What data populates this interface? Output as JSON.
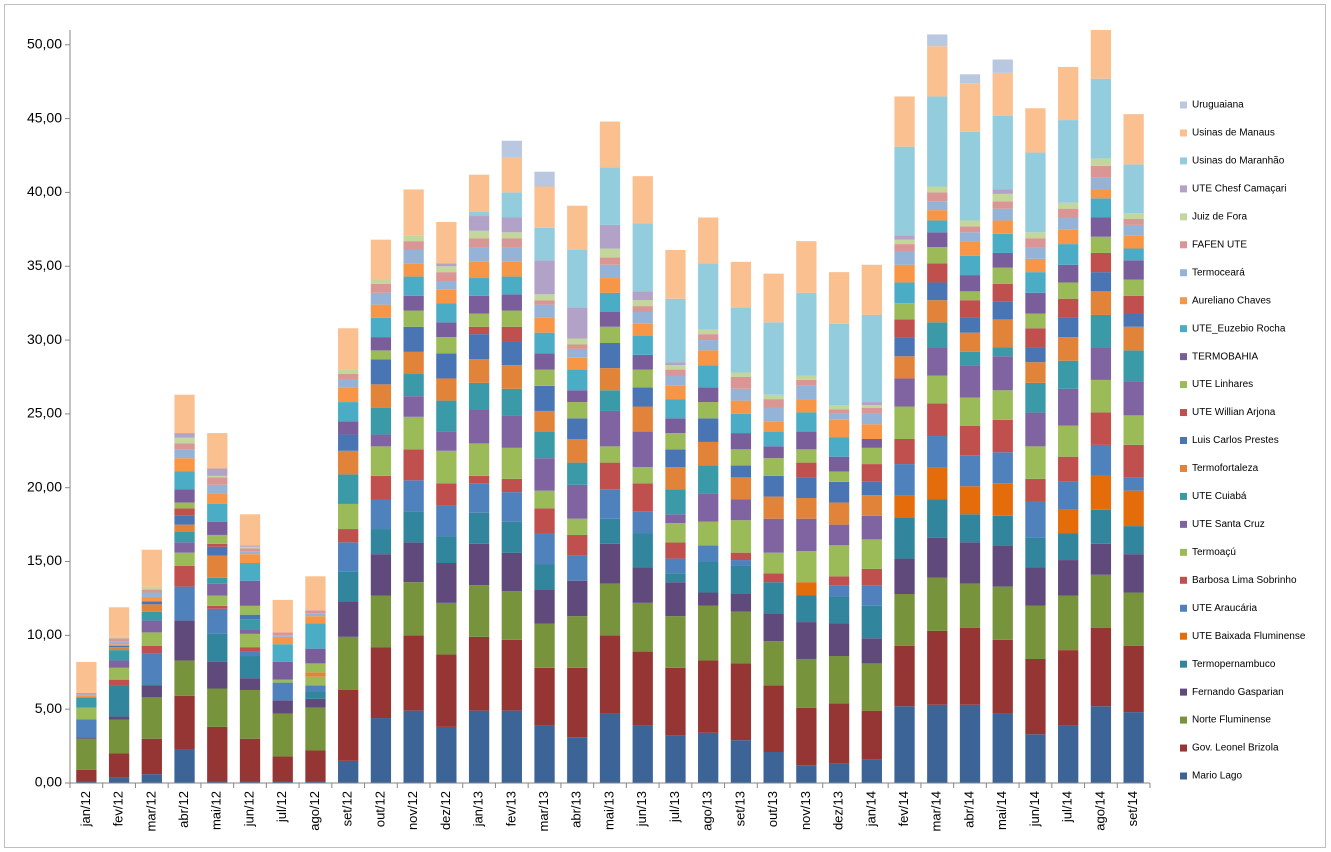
{
  "chart_data": {
    "type": "stacked_bar",
    "categories": [
      "jan/12",
      "fev/12",
      "mar/12",
      "abr/12",
      "mai/12",
      "jun/12",
      "jul/12",
      "ago/12",
      "set/12",
      "out/12",
      "nov/12",
      "dez/12",
      "jan/13",
      "fev/13",
      "mar/13",
      "abr/13",
      "mai/13",
      "jun/13",
      "jul/13",
      "ago/13",
      "set/13",
      "out/13",
      "nov/13",
      "dez/13",
      "jan/14",
      "fev/14",
      "mar/14",
      "abr/14",
      "mai/14",
      "jun/14",
      "jul/14",
      "ago/14",
      "set/14"
    ],
    "ylim": [
      0,
      51
    ],
    "yticks": [
      {
        "value": 0,
        "label": "0,00"
      },
      {
        "value": 5,
        "label": "5,00"
      },
      {
        "value": 10,
        "label": "10,00"
      },
      {
        "value": 15,
        "label": "15,00"
      },
      {
        "value": 20,
        "label": "20,00"
      },
      {
        "value": 25,
        "label": "25,00"
      },
      {
        "value": 30,
        "label": "30,00"
      },
      {
        "value": 35,
        "label": "35,00"
      },
      {
        "value": 40,
        "label": "40,00"
      },
      {
        "value": 45,
        "label": "45,00"
      },
      {
        "value": 50,
        "label": "50,00"
      }
    ],
    "grid": false,
    "legend": "right",
    "series": [
      {
        "name": "Mario Lago",
        "color": "#3c6497",
        "values": [
          0.1,
          0.4,
          0.6,
          2.3,
          0.1,
          0.1,
          0.1,
          0.1,
          1.5,
          4.4,
          4.9,
          3.8,
          4.9,
          4.9,
          3.9,
          3.1,
          4.7,
          3.9,
          3.2,
          3.4,
          2.9,
          2.1,
          1.2,
          1.3,
          1.6,
          5.2,
          5.3,
          5.3,
          4.7,
          3.3,
          3.9,
          5.2,
          4.8
        ]
      },
      {
        "name": "Gov. Leonel Brizola",
        "color": "#963634",
        "values": [
          0.8,
          1.6,
          2.4,
          3.6,
          3.7,
          2.9,
          1.7,
          2.1,
          4.8,
          4.8,
          5.1,
          4.9,
          5.0,
          4.8,
          3.9,
          4.7,
          5.3,
          5.0,
          4.6,
          4.9,
          5.2,
          4.5,
          3.9,
          4.1,
          3.3,
          4.1,
          5.0,
          5.2,
          5.0,
          5.1,
          5.1,
          5.3,
          4.5
        ]
      },
      {
        "name": "Norte Fluminense",
        "color": "#77933c",
        "values": [
          2.1,
          2.3,
          2.8,
          2.4,
          2.6,
          3.3,
          2.9,
          2.9,
          3.6,
          3.5,
          3.6,
          3.5,
          3.5,
          3.3,
          3.0,
          3.5,
          3.5,
          3.3,
          3.5,
          3.7,
          3.5,
          3.0,
          3.3,
          3.2,
          3.2,
          3.5,
          3.6,
          3.0,
          3.6,
          3.6,
          3.7,
          3.6,
          3.6
        ]
      },
      {
        "name": "Fernando Gasparian",
        "color": "#604a7b",
        "values": [
          0.1,
          0.2,
          0.8,
          2.7,
          1.8,
          0.8,
          0.9,
          0.6,
          2.4,
          2.8,
          2.7,
          2.7,
          2.8,
          2.6,
          2.3,
          2.4,
          2.7,
          2.4,
          2.3,
          0.9,
          1.2,
          1.9,
          2.5,
          2.2,
          1.7,
          2.4,
          2.7,
          2.8,
          2.8,
          2.6,
          2.4,
          2.1,
          2.6
        ]
      },
      {
        "name": "Termopernambuco",
        "color": "#31859c",
        "values": [
          0,
          2.1,
          0.1,
          0,
          1.9,
          1.5,
          0,
          0.5,
          2.0,
          1.7,
          2.1,
          1.8,
          2.1,
          2.1,
          1.7,
          0,
          1.7,
          2.3,
          0.6,
          2.1,
          1.9,
          2.1,
          1.8,
          1.8,
          2.2,
          2.8,
          2.6,
          1.9,
          2.0,
          2.0,
          1.8,
          2.3,
          1.9
        ]
      },
      {
        "name": "UTE Baixada Fluminense",
        "color": "#e46c0a",
        "values": [
          0,
          0,
          0,
          0,
          0,
          0,
          0,
          0,
          0,
          0,
          0,
          0,
          0,
          0,
          0,
          0,
          0,
          0,
          0,
          0,
          0,
          0,
          0.9,
          0,
          0,
          1.5,
          2.2,
          1.9,
          2.2,
          0,
          1.6,
          2.3,
          2.4
        ]
      },
      {
        "name": "UTE Araucária",
        "color": "#4f81bd",
        "values": [
          1.2,
          0,
          2.1,
          2.3,
          1.7,
          0.3,
          1.2,
          0.4,
          2.0,
          2.0,
          2.1,
          2.1,
          2.0,
          2.0,
          2.1,
          1.7,
          2.0,
          1.5,
          1.0,
          1.1,
          0.4,
          0,
          0,
          0.8,
          1.4,
          2.1,
          2.1,
          2.1,
          2.1,
          2.5,
          1.9,
          2.1,
          0.9
        ]
      },
      {
        "name": "Barbosa Lima Sobrinho",
        "color": "#c0504d",
        "values": [
          0,
          0.4,
          0.5,
          1.4,
          0.2,
          0.3,
          0,
          0,
          0.9,
          1.6,
          2.1,
          1.5,
          0.5,
          0.9,
          1.7,
          1.4,
          1.8,
          1.9,
          1.1,
          0,
          0.5,
          0.6,
          0,
          0.6,
          1.1,
          1.7,
          2.2,
          2.0,
          2.2,
          1.5,
          1.7,
          2.2,
          2.2
        ]
      },
      {
        "name": "Termoaçú",
        "color": "#9bbb59",
        "values": [
          0.8,
          0.8,
          0.9,
          0.9,
          0.7,
          0.9,
          0.2,
          0.6,
          1.7,
          2.0,
          2.2,
          2.2,
          2.2,
          2.1,
          1.2,
          1.1,
          1.1,
          1.1,
          1.3,
          1.6,
          2.2,
          1.4,
          2.1,
          2.1,
          2.0,
          2.2,
          1.9,
          1.9,
          2.0,
          2.2,
          2.1,
          2.2,
          2.0
        ]
      },
      {
        "name": "UTE Santa Cruz",
        "color": "#8064a2",
        "values": [
          0,
          0.5,
          0.8,
          0.7,
          0.8,
          0.3,
          0,
          0,
          0,
          0.8,
          1.4,
          1.3,
          2.3,
          2.2,
          2.2,
          2.3,
          2.4,
          2.4,
          0.6,
          1.9,
          1.4,
          2.3,
          2.2,
          1.4,
          1.6,
          1.9,
          1.9,
          2.2,
          2.3,
          2.3,
          2.5,
          2.2,
          2.3
        ]
      },
      {
        "name": "UTE Cuiabá",
        "color": "#3a9aa8",
        "values": [
          0.7,
          0.7,
          0.6,
          0.7,
          0.4,
          0.7,
          0,
          0,
          2.0,
          1.8,
          1.5,
          2.1,
          1.8,
          1.8,
          1.8,
          1.5,
          1.4,
          0,
          1.7,
          1.9,
          0,
          0,
          0,
          0,
          0,
          0,
          1.7,
          0.9,
          0.6,
          2.0,
          1.9,
          2.2,
          2.1
        ]
      },
      {
        "name": "Termofortaleza",
        "color": "#e2833a",
        "values": [
          0,
          0.2,
          0.5,
          0.5,
          1.5,
          0,
          0,
          0.3,
          1.6,
          1.6,
          1.5,
          1.5,
          1.6,
          1.6,
          1.4,
          1.6,
          1.5,
          1.7,
          1.5,
          1.6,
          1.5,
          1.5,
          1.4,
          1.5,
          1.4,
          1.5,
          1.5,
          1.3,
          1.9,
          1.4,
          1.6,
          1.6,
          1.6
        ]
      },
      {
        "name": "Luis Carlos Prestes",
        "color": "#4a75b5",
        "values": [
          0,
          0.1,
          0.2,
          0.6,
          0.6,
          0.3,
          0,
          0,
          1.1,
          1.7,
          1.7,
          1.7,
          1.7,
          1.6,
          1.7,
          1.4,
          1.7,
          1.3,
          1.2,
          1.6,
          0.8,
          1.4,
          1.4,
          1.4,
          0.9,
          1.3,
          1.2,
          1.0,
          1.2,
          1.0,
          1.3,
          1.3,
          0.9
        ]
      },
      {
        "name": "UTE Willian Arjona",
        "color": "#c0504d",
        "values": [
          0,
          0,
          0,
          0.5,
          0.2,
          0,
          0,
          0,
          0,
          0,
          0,
          0,
          0.5,
          1.0,
          0,
          0,
          0,
          0,
          0,
          0,
          0,
          0,
          1.0,
          0,
          1.2,
          1.2,
          1.3,
          1.2,
          1.2,
          1.3,
          1.3,
          1.3,
          1.2
        ]
      },
      {
        "name": "UTE Linhares",
        "color": "#9bbb59",
        "values": [
          0,
          0,
          0,
          0.4,
          0.6,
          0.6,
          0,
          0.6,
          0,
          0.6,
          1.1,
          1.1,
          0.9,
          1.1,
          1.1,
          1.1,
          1.1,
          1.2,
          1.1,
          1.1,
          1.1,
          1.2,
          0.9,
          0.7,
          1.1,
          1.1,
          1.1,
          0.6,
          1.1,
          1.0,
          1.1,
          1.1,
          1.1
        ]
      },
      {
        "name": "TERMOBAHIA",
        "color": "#7a5e9c",
        "values": [
          0,
          0,
          0,
          0.9,
          0.9,
          1.7,
          1.2,
          1.0,
          0.9,
          0.9,
          1.0,
          1.0,
          1.2,
          1.1,
          1.1,
          0.8,
          1.0,
          1.0,
          1.0,
          1.0,
          1.1,
          0.8,
          1.2,
          1.0,
          0.6,
          0,
          1.0,
          1.1,
          1.0,
          1.4,
          1.2,
          1.3,
          1.3
        ]
      },
      {
        "name": "UTE_Euzebio Rocha",
        "color": "#4bacc6",
        "values": [
          0,
          0,
          0,
          1.2,
          1.2,
          1.2,
          1.2,
          1.7,
          1.3,
          1.3,
          1.3,
          1.3,
          1.2,
          1.2,
          1.4,
          1.4,
          1.3,
          1.3,
          1.3,
          1.5,
          1.3,
          1.0,
          1.3,
          1.3,
          0,
          1.4,
          0.8,
          1.3,
          1.3,
          1.4,
          1.4,
          1.3,
          0.8
        ]
      },
      {
        "name": "Aureliano Chaves",
        "color": "#f79646",
        "values": [
          0.1,
          0.1,
          0.3,
          0.9,
          0.7,
          0.6,
          0.5,
          0.5,
          1.0,
          0.9,
          0.9,
          0.9,
          1.1,
          1.0,
          1.0,
          0.8,
          1.0,
          0.8,
          0.9,
          1.0,
          0.9,
          0.7,
          0.9,
          1.2,
          1.0,
          1.2,
          0.7,
          1.0,
          0.9,
          0.9,
          1.0,
          0.6,
          0.9
        ]
      },
      {
        "name": "Termoceará",
        "color": "#95b3d7",
        "values": [
          0.1,
          0.2,
          0.3,
          0.6,
          0.6,
          0.2,
          0.1,
          0.2,
          0.5,
          0.8,
          0.9,
          0.6,
          1.0,
          1.0,
          0.9,
          0.6,
          0.9,
          0.8,
          0.7,
          0.7,
          0.8,
          0.9,
          0.9,
          0.4,
          0.7,
          0.9,
          0.6,
          0.6,
          0.8,
          0.8,
          0.8,
          0.8,
          0.7
        ]
      },
      {
        "name": "FAFEN UTE",
        "color": "#d99694",
        "values": [
          0.1,
          0.2,
          0.2,
          0.4,
          0.5,
          0.2,
          0.2,
          0.2,
          0.4,
          0.6,
          0.6,
          0.6,
          0.6,
          0.6,
          0.3,
          0.3,
          0.5,
          0.4,
          0.4,
          0.4,
          0.8,
          0.6,
          0.4,
          0.3,
          0.4,
          0.5,
          0.6,
          0.4,
          0.5,
          0.6,
          0.6,
          0.8,
          0.4
        ]
      },
      {
        "name": "Juiz de Fora",
        "color": "#c3d69b",
        "values": [
          0,
          0.1,
          0.2,
          0.4,
          0.1,
          0.1,
          0,
          0,
          0.3,
          0.3,
          0.4,
          0.4,
          0.5,
          0.4,
          0.4,
          0.4,
          0.6,
          0.4,
          0.3,
          0.3,
          0.3,
          0.3,
          0.3,
          0.3,
          0.2,
          0.3,
          0.4,
          0.4,
          0.5,
          0.4,
          0.4,
          0.5,
          0.4
        ]
      },
      {
        "name": "UTE Chesf Camaçari",
        "color": "#b3a2c7",
        "values": [
          0,
          0,
          0,
          0.3,
          0.5,
          0.1,
          0,
          0,
          0,
          0,
          0,
          0.2,
          1.0,
          1.0,
          2.3,
          2.1,
          1.6,
          0.6,
          0.2,
          0,
          0,
          0,
          0,
          0,
          0.2,
          0.3,
          0,
          0,
          0.3,
          0,
          0,
          0,
          0
        ]
      },
      {
        "name": "Usinas do Maranhão",
        "color": "#93cddd",
        "values": [
          0,
          0,
          0,
          0,
          0,
          0,
          0,
          0,
          0,
          0,
          0,
          0,
          0.3,
          1.7,
          2.2,
          3.9,
          3.9,
          4.6,
          4.3,
          4.5,
          4.4,
          4.9,
          5.6,
          5.5,
          5.9,
          6.0,
          6.1,
          6.0,
          5.0,
          5.4,
          5.6,
          5.4,
          3.3
        ]
      },
      {
        "name": "Usinas de Manaus",
        "color": "#fac090",
        "values": [
          2.1,
          2.0,
          2.5,
          2.6,
          2.4,
          2.1,
          2.2,
          2.3,
          2.8,
          2.7,
          3.1,
          2.8,
          2.5,
          2.4,
          2.8,
          3.0,
          3.1,
          3.2,
          3.3,
          3.1,
          3.1,
          3.3,
          3.5,
          3.5,
          3.4,
          3.4,
          3.4,
          3.3,
          2.9,
          3.0,
          3.6,
          3.3,
          3.4
        ]
      },
      {
        "name": "Uruguaiana",
        "color": "#b9c7e0",
        "values": [
          0,
          0,
          0,
          0,
          0,
          0,
          0,
          0,
          0,
          0,
          0,
          0,
          0,
          1.1,
          1.0,
          0,
          0,
          0,
          0,
          0,
          0,
          0,
          0,
          0,
          0,
          0,
          0.8,
          0.6,
          0.9,
          0,
          0,
          0,
          0
        ]
      }
    ]
  }
}
